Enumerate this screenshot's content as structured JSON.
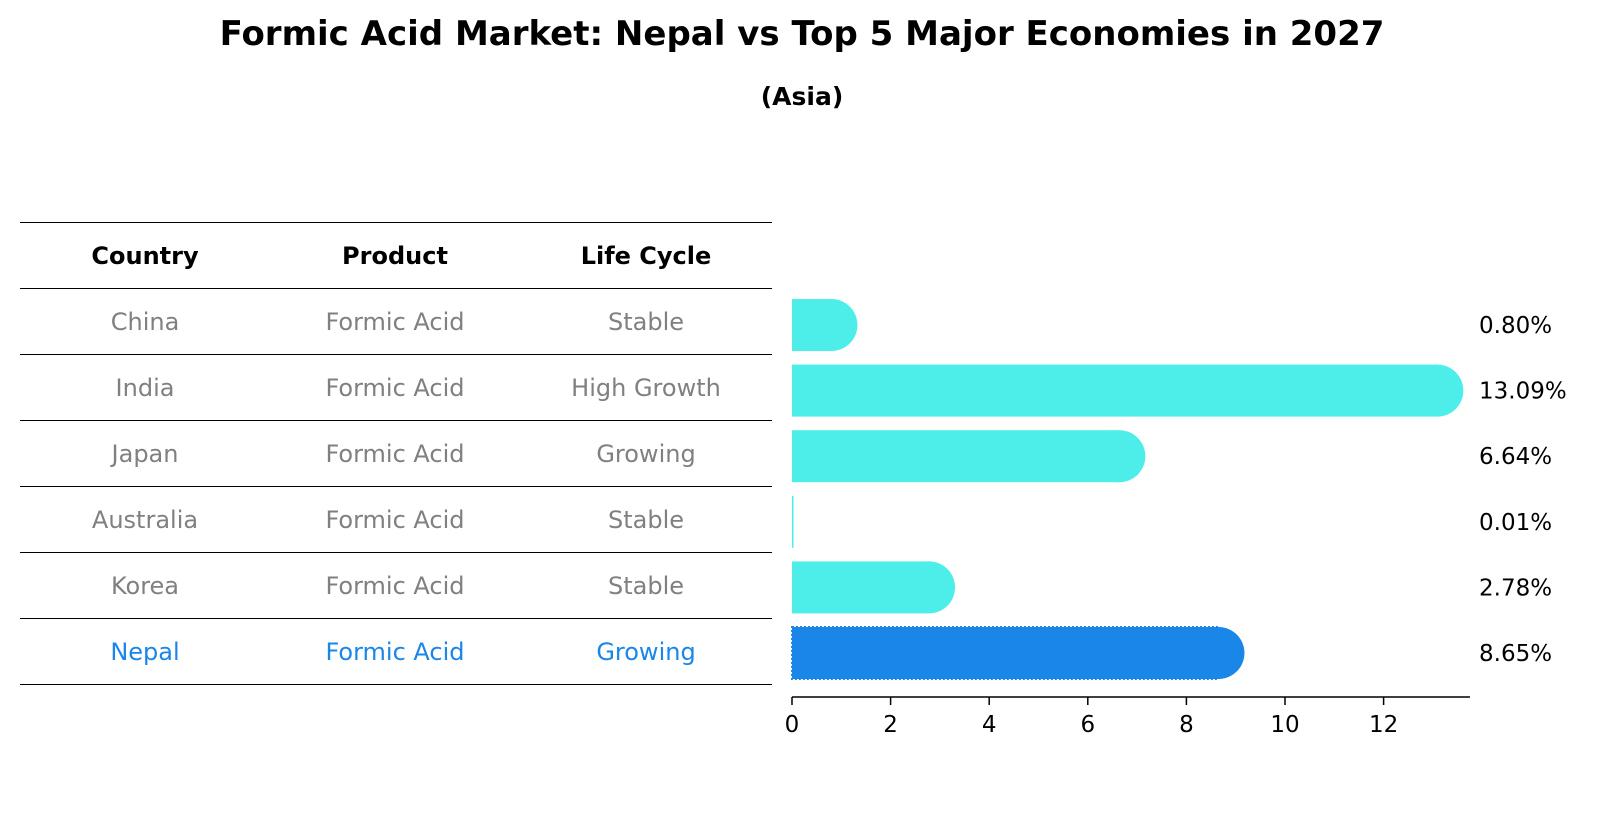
{
  "title": "Formic Acid Market: Nepal vs Top 5 Major Economies in 2027",
  "subtitle": "(Asia)",
  "table": {
    "headers": [
      "Country",
      "Product",
      "Life Cycle"
    ],
    "rows": [
      [
        "China",
        "Formic Acid",
        "Stable"
      ],
      [
        "India",
        "Formic Acid",
        "High Growth"
      ],
      [
        "Japan",
        "Formic Acid",
        "Growing"
      ],
      [
        "Australia",
        "Formic Acid",
        "Stable"
      ],
      [
        "Korea",
        "Formic Acid",
        "Stable"
      ],
      [
        "Nepal",
        "Formic Acid",
        "Growing"
      ]
    ],
    "highlight_row": "Nepal"
  },
  "colors": {
    "bar": "#4deeea",
    "highlight": "#1a86e8",
    "muted_text": "#808080"
  },
  "chart_data": {
    "type": "bar",
    "orientation": "horizontal",
    "categories": [
      "China",
      "India",
      "Japan",
      "Australia",
      "Korea",
      "Nepal"
    ],
    "values": [
      0.8,
      13.09,
      6.64,
      0.01,
      2.78,
      8.65
    ],
    "value_labels": [
      "0.80%",
      "13.09%",
      "6.64%",
      "0.01%",
      "2.78%",
      "8.65%"
    ],
    "xlim": [
      0,
      13.8
    ],
    "xticks": [
      0,
      2,
      4,
      6,
      8,
      10,
      12
    ],
    "highlight": "Nepal"
  }
}
